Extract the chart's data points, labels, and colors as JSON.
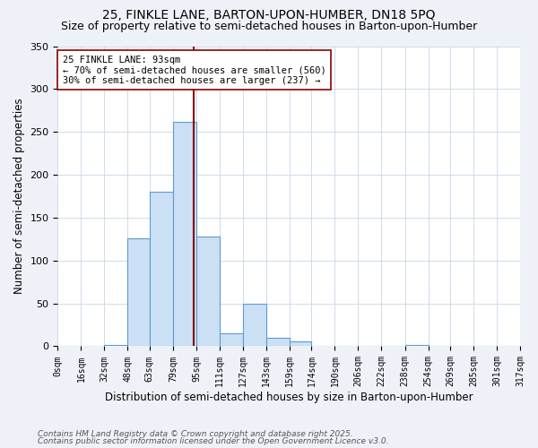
{
  "title1": "25, FINKLE LANE, BARTON-UPON-HUMBER, DN18 5PQ",
  "title2": "Size of property relative to semi-detached houses in Barton-upon-Humber",
  "xlabel": "Distribution of semi-detached houses by size in Barton-upon-Humber",
  "ylabel": "Number of semi-detached properties",
  "bin_labels": [
    "0sqm",
    "16sqm",
    "32sqm",
    "48sqm",
    "63sqm",
    "79sqm",
    "95sqm",
    "111sqm",
    "127sqm",
    "143sqm",
    "159sqm",
    "174sqm",
    "190sqm",
    "206sqm",
    "222sqm",
    "238sqm",
    "254sqm",
    "269sqm",
    "285sqm",
    "301sqm",
    "317sqm"
  ],
  "bin_edges": [
    0,
    16,
    32,
    48,
    63,
    79,
    95,
    111,
    127,
    143,
    159,
    174,
    190,
    206,
    222,
    238,
    254,
    269,
    285,
    301,
    317
  ],
  "bar_heights": [
    0,
    0,
    2,
    126,
    180,
    262,
    128,
    15,
    50,
    10,
    6,
    0,
    1,
    0,
    0,
    2,
    0,
    0,
    1,
    0
  ],
  "bar_color": "#cce0f5",
  "bar_edge_color": "#5b9bd5",
  "property_size": 93,
  "property_line_color": "#8b0000",
  "annotation_text": "25 FINKLE LANE: 93sqm\n← 70% of semi-detached houses are smaller (560)\n30% of semi-detached houses are larger (237) →",
  "annotation_box_color": "white",
  "annotation_box_edge_color": "#8b0000",
  "ylim": [
    0,
    350
  ],
  "yticks": [
    0,
    50,
    100,
    150,
    200,
    250,
    300,
    350
  ],
  "footer1": "Contains HM Land Registry data © Crown copyright and database right 2025.",
  "footer2": "Contains public sector information licensed under the Open Government Licence v3.0.",
  "background_color": "#eef2f8",
  "plot_background_color": "white",
  "title_fontsize": 10,
  "subtitle_fontsize": 9,
  "axis_fontsize": 8.5,
  "tick_fontsize": 7,
  "annot_fontsize": 7.5,
  "footer_fontsize": 6.5
}
